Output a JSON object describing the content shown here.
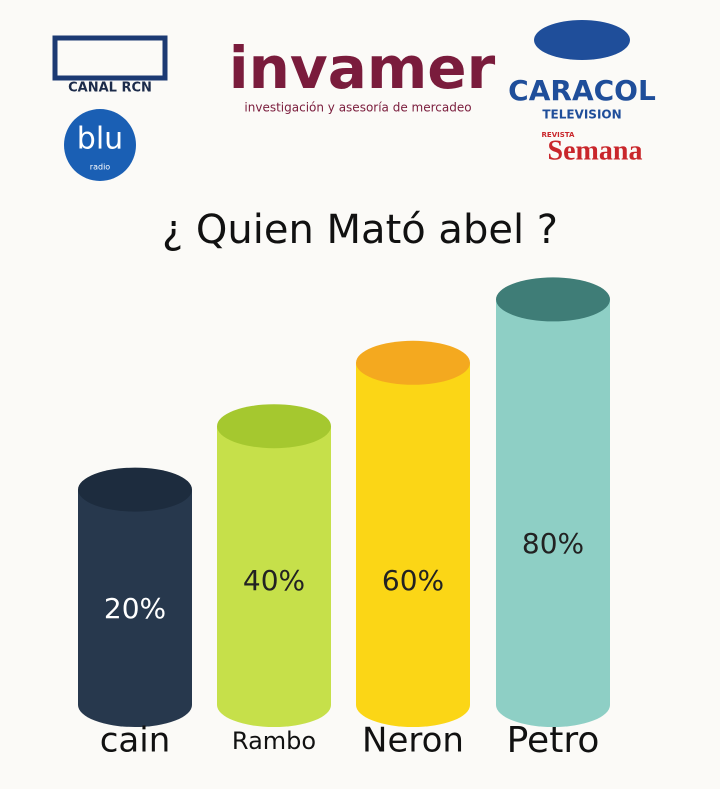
{
  "logos": {
    "rcn": "CANAL RCN",
    "invamer": "invamer",
    "invamer_tagline": "investigación y asesoría de mercadeo",
    "caracol": "CARACOL",
    "caracol_sub": "TELEVISION",
    "blu": "blu",
    "blu_sub": "radio",
    "semana_sub": "REVISTA",
    "semana": "Semana"
  },
  "chart_data": {
    "type": "bar",
    "title": "¿ Quien Mató abel ?",
    "categories": [
      "cain",
      "Rambo",
      "Neron",
      "Petro"
    ],
    "values": [
      20,
      40,
      60,
      80
    ],
    "value_labels": [
      "20%",
      "40%",
      "60%",
      "80%"
    ],
    "colors": [
      "#27384d",
      "#c6e04a",
      "#fbd616",
      "#8ecfc5"
    ],
    "top_colors": [
      "#1d2c3e",
      "#a5c82f",
      "#f4a91f",
      "#3f7d77"
    ]
  }
}
